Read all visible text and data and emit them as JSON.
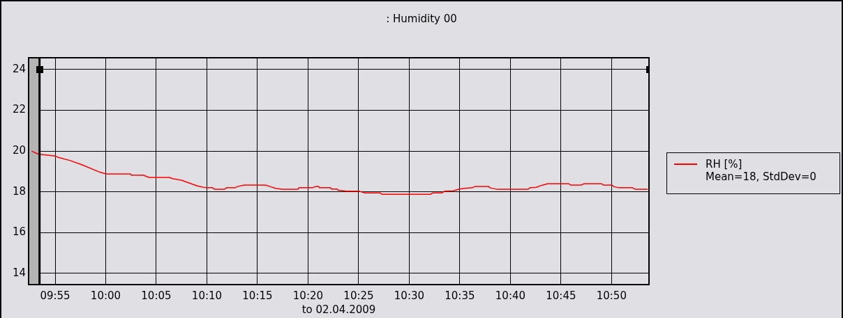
{
  "chart_data": {
    "type": "line",
    "title": ": Humidity 00",
    "xlabel": "to 02.04.2009",
    "annotations": [
      "Mean=18, StdDev=0"
    ],
    "xlim": [
      9.873,
      10.895
    ],
    "xticks": [
      {
        "value": 9.9167,
        "label": "09:55"
      },
      {
        "value": 10,
        "label": "10:00"
      },
      {
        "value": 10.0833,
        "label": "10:05"
      },
      {
        "value": 10.1667,
        "label": "10:10"
      },
      {
        "value": 10.25,
        "label": "10:15"
      },
      {
        "value": 10.3333,
        "label": "10:20"
      },
      {
        "value": 10.4167,
        "label": "10:25"
      },
      {
        "value": 10.5,
        "label": "10:30"
      },
      {
        "value": 10.5833,
        "label": "10:35"
      },
      {
        "value": 10.6667,
        "label": "10:40"
      },
      {
        "value": 10.75,
        "label": "10:45"
      },
      {
        "value": 10.8333,
        "label": "10:50"
      }
    ],
    "ylim": [
      13.45,
      24.58
    ],
    "yticks": [
      14,
      16,
      18,
      20,
      22,
      24
    ],
    "grid": true,
    "legend": "right",
    "marker": "none",
    "line_style": "solid",
    "bands": [
      {
        "axis": "x",
        "from": 9.873,
        "to": 9.891,
        "color": "#b4b4b4"
      }
    ],
    "ref_lines": [
      {
        "axis": "x",
        "value": 9.891,
        "color": "#000000",
        "line_style": "solid"
      }
    ],
    "series": [
      {
        "name": "RH [%]",
        "color": "#ff0000",
        "x": [
          9.878,
          9.889,
          9.917,
          9.921,
          9.941,
          9.96,
          9.99,
          10.001,
          10.041,
          10.042,
          10.062,
          10.071,
          10.105,
          10.11,
          10.125,
          10.151,
          10.165,
          10.176,
          10.179,
          10.196,
          10.199,
          10.213,
          10.217,
          10.228,
          10.263,
          10.271,
          10.28,
          10.291,
          10.317,
          10.318,
          10.341,
          10.345,
          10.351,
          10.352,
          10.37,
          10.372,
          10.381,
          10.383,
          10.397,
          10.418,
          10.427,
          10.452,
          10.455,
          10.535,
          10.539,
          10.554,
          10.558,
          10.573,
          10.581,
          10.59,
          10.604,
          10.608,
          10.631,
          10.633,
          10.642,
          10.645,
          10.696,
          10.699,
          10.709,
          10.717,
          10.722,
          10.728,
          10.763,
          10.766,
          10.783,
          10.788,
          10.817,
          10.82,
          10.834,
          10.837,
          10.845,
          10.868,
          10.872,
          10.893
        ],
        "values": [
          20.0,
          19.85,
          19.76,
          19.7,
          19.54,
          19.34,
          18.97,
          18.88,
          18.88,
          18.82,
          18.82,
          18.71,
          18.71,
          18.65,
          18.57,
          18.29,
          18.2,
          18.2,
          18.13,
          18.13,
          18.2,
          18.2,
          18.26,
          18.33,
          18.33,
          18.26,
          18.17,
          18.13,
          18.13,
          18.2,
          18.2,
          18.26,
          18.26,
          18.2,
          18.2,
          18.14,
          18.14,
          18.08,
          18.03,
          18.03,
          17.95,
          17.95,
          17.88,
          17.88,
          17.95,
          17.95,
          18.03,
          18.05,
          18.13,
          18.17,
          18.2,
          18.26,
          18.26,
          18.2,
          18.14,
          18.13,
          18.13,
          18.2,
          18.22,
          18.31,
          18.35,
          18.4,
          18.4,
          18.33,
          18.33,
          18.4,
          18.4,
          18.33,
          18.33,
          18.26,
          18.2,
          18.2,
          18.13,
          18.13
        ]
      }
    ]
  }
}
